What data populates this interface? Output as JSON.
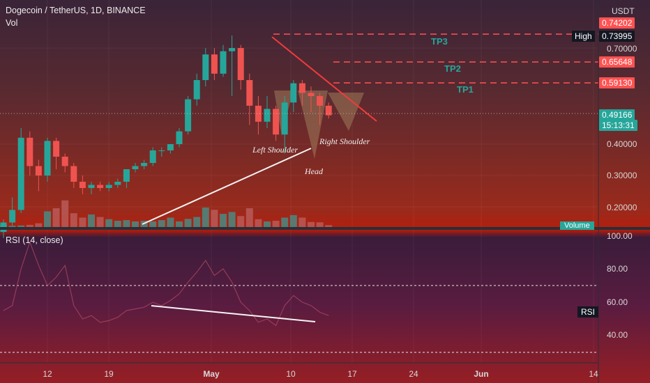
{
  "header": {
    "title": "Dogecoin / TetherUS, 1D, BINANCE",
    "volume_label": "Vol",
    "rsi_label": "RSI (14, close)"
  },
  "price_axis": {
    "currency": "USDT",
    "ticks": [
      "0.70000",
      "0.40000",
      "0.30000",
      "0.20000"
    ],
    "high_label": "High",
    "high_value": "0.73995",
    "tp3_value": "0.74202",
    "tp2_value": "0.65648",
    "tp1_value": "0.59130",
    "last_price": "0.49166",
    "countdown": "15:13:31",
    "volume_tag": "Volume"
  },
  "rsi_axis": {
    "ticks": [
      "100.00",
      "80.00",
      "60.00",
      "40.00"
    ],
    "tag": "RSI"
  },
  "x_axis": {
    "ticks": [
      "12",
      "19",
      "May",
      "10",
      "17",
      "24",
      "Jun",
      "14"
    ]
  },
  "annotations": {
    "tp1": "TP1",
    "tp2": "TP2",
    "tp3": "TP3",
    "left_shoulder": "Left Shoulder",
    "right_shoulder": "Right Shoulder",
    "head": "Head"
  },
  "colors": {
    "up": "#26a69a",
    "down": "#ef5350",
    "rsi_line": "#7e57c2",
    "target_line": "#ff5252",
    "box_bg": "#131722"
  },
  "chart_data": {
    "type": "candlestick",
    "symbol": "Dogecoin / TetherUS",
    "interval": "1D",
    "exchange": "BINANCE",
    "x_ticks": [
      "12",
      "19",
      "May",
      "10",
      "17",
      "24",
      "Jun",
      "14"
    ],
    "price_levels": {
      "TP3": 0.74202,
      "TP2": 0.65648,
      "TP1": 0.5913,
      "High": 0.73995,
      "last": 0.49166
    },
    "ohlc": [
      [
        0.12,
        0.16,
        0.1,
        0.15
      ],
      [
        0.15,
        0.23,
        0.14,
        0.19
      ],
      [
        0.19,
        0.45,
        0.18,
        0.42
      ],
      [
        0.42,
        0.44,
        0.3,
        0.33
      ],
      [
        0.33,
        0.35,
        0.25,
        0.3
      ],
      [
        0.3,
        0.42,
        0.28,
        0.41
      ],
      [
        0.41,
        0.42,
        0.32,
        0.36
      ],
      [
        0.36,
        0.37,
        0.31,
        0.33
      ],
      [
        0.33,
        0.34,
        0.26,
        0.28
      ],
      [
        0.28,
        0.3,
        0.24,
        0.26
      ],
      [
        0.26,
        0.28,
        0.24,
        0.27
      ],
      [
        0.27,
        0.28,
        0.25,
        0.26
      ],
      [
        0.26,
        0.28,
        0.25,
        0.27
      ],
      [
        0.27,
        0.29,
        0.26,
        0.28
      ],
      [
        0.28,
        0.32,
        0.26,
        0.32
      ],
      [
        0.32,
        0.34,
        0.31,
        0.33
      ],
      [
        0.33,
        0.35,
        0.32,
        0.34
      ],
      [
        0.34,
        0.39,
        0.33,
        0.38
      ],
      [
        0.38,
        0.39,
        0.36,
        0.38
      ],
      [
        0.38,
        0.4,
        0.37,
        0.4
      ],
      [
        0.4,
        0.45,
        0.39,
        0.44
      ],
      [
        0.44,
        0.55,
        0.43,
        0.54
      ],
      [
        0.54,
        0.62,
        0.52,
        0.6
      ],
      [
        0.6,
        0.7,
        0.58,
        0.68
      ],
      [
        0.68,
        0.7,
        0.6,
        0.62
      ],
      [
        0.62,
        0.71,
        0.61,
        0.69
      ],
      [
        0.69,
        0.74,
        0.55,
        0.7
      ],
      [
        0.7,
        0.71,
        0.57,
        0.6
      ],
      [
        0.6,
        0.62,
        0.46,
        0.52
      ],
      [
        0.52,
        0.55,
        0.43,
        0.47
      ],
      [
        0.47,
        0.55,
        0.45,
        0.51
      ],
      [
        0.51,
        0.52,
        0.41,
        0.43
      ],
      [
        0.43,
        0.55,
        0.37,
        0.53
      ],
      [
        0.53,
        0.6,
        0.5,
        0.59
      ],
      [
        0.59,
        0.6,
        0.52,
        0.56
      ],
      [
        0.56,
        0.58,
        0.5,
        0.55
      ],
      [
        0.55,
        0.56,
        0.46,
        0.52
      ],
      [
        0.52,
        0.53,
        0.48,
        0.49
      ]
    ],
    "volume": [
      0.06,
      0.04,
      0.05,
      0.07,
      0.12,
      0.5,
      0.6,
      0.85,
      0.44,
      0.3,
      0.4,
      0.32,
      0.25,
      0.2,
      0.22,
      0.18,
      0.2,
      0.18,
      0.22,
      0.3,
      0.18,
      0.26,
      0.32,
      0.62,
      0.55,
      0.42,
      0.48,
      0.35,
      0.6,
      0.25,
      0.18,
      0.2,
      0.3,
      0.38,
      0.3,
      0.16,
      0.15,
      0.06
    ],
    "rsi": [
      55,
      58,
      80,
      96,
      82,
      70,
      75,
      82,
      58,
      50,
      52,
      48,
      49,
      51,
      55,
      56,
      57,
      60,
      58,
      61,
      65,
      72,
      78,
      85,
      76,
      80,
      72,
      60,
      55,
      48,
      50,
      46,
      58,
      64,
      60,
      58,
      54,
      52
    ],
    "rsi_levels": [
      70,
      30
    ],
    "pattern": "Inverse head and shoulders",
    "annotations": [
      "Left Shoulder",
      "Head",
      "Right Shoulder",
      "TP1",
      "TP2",
      "TP3"
    ]
  }
}
